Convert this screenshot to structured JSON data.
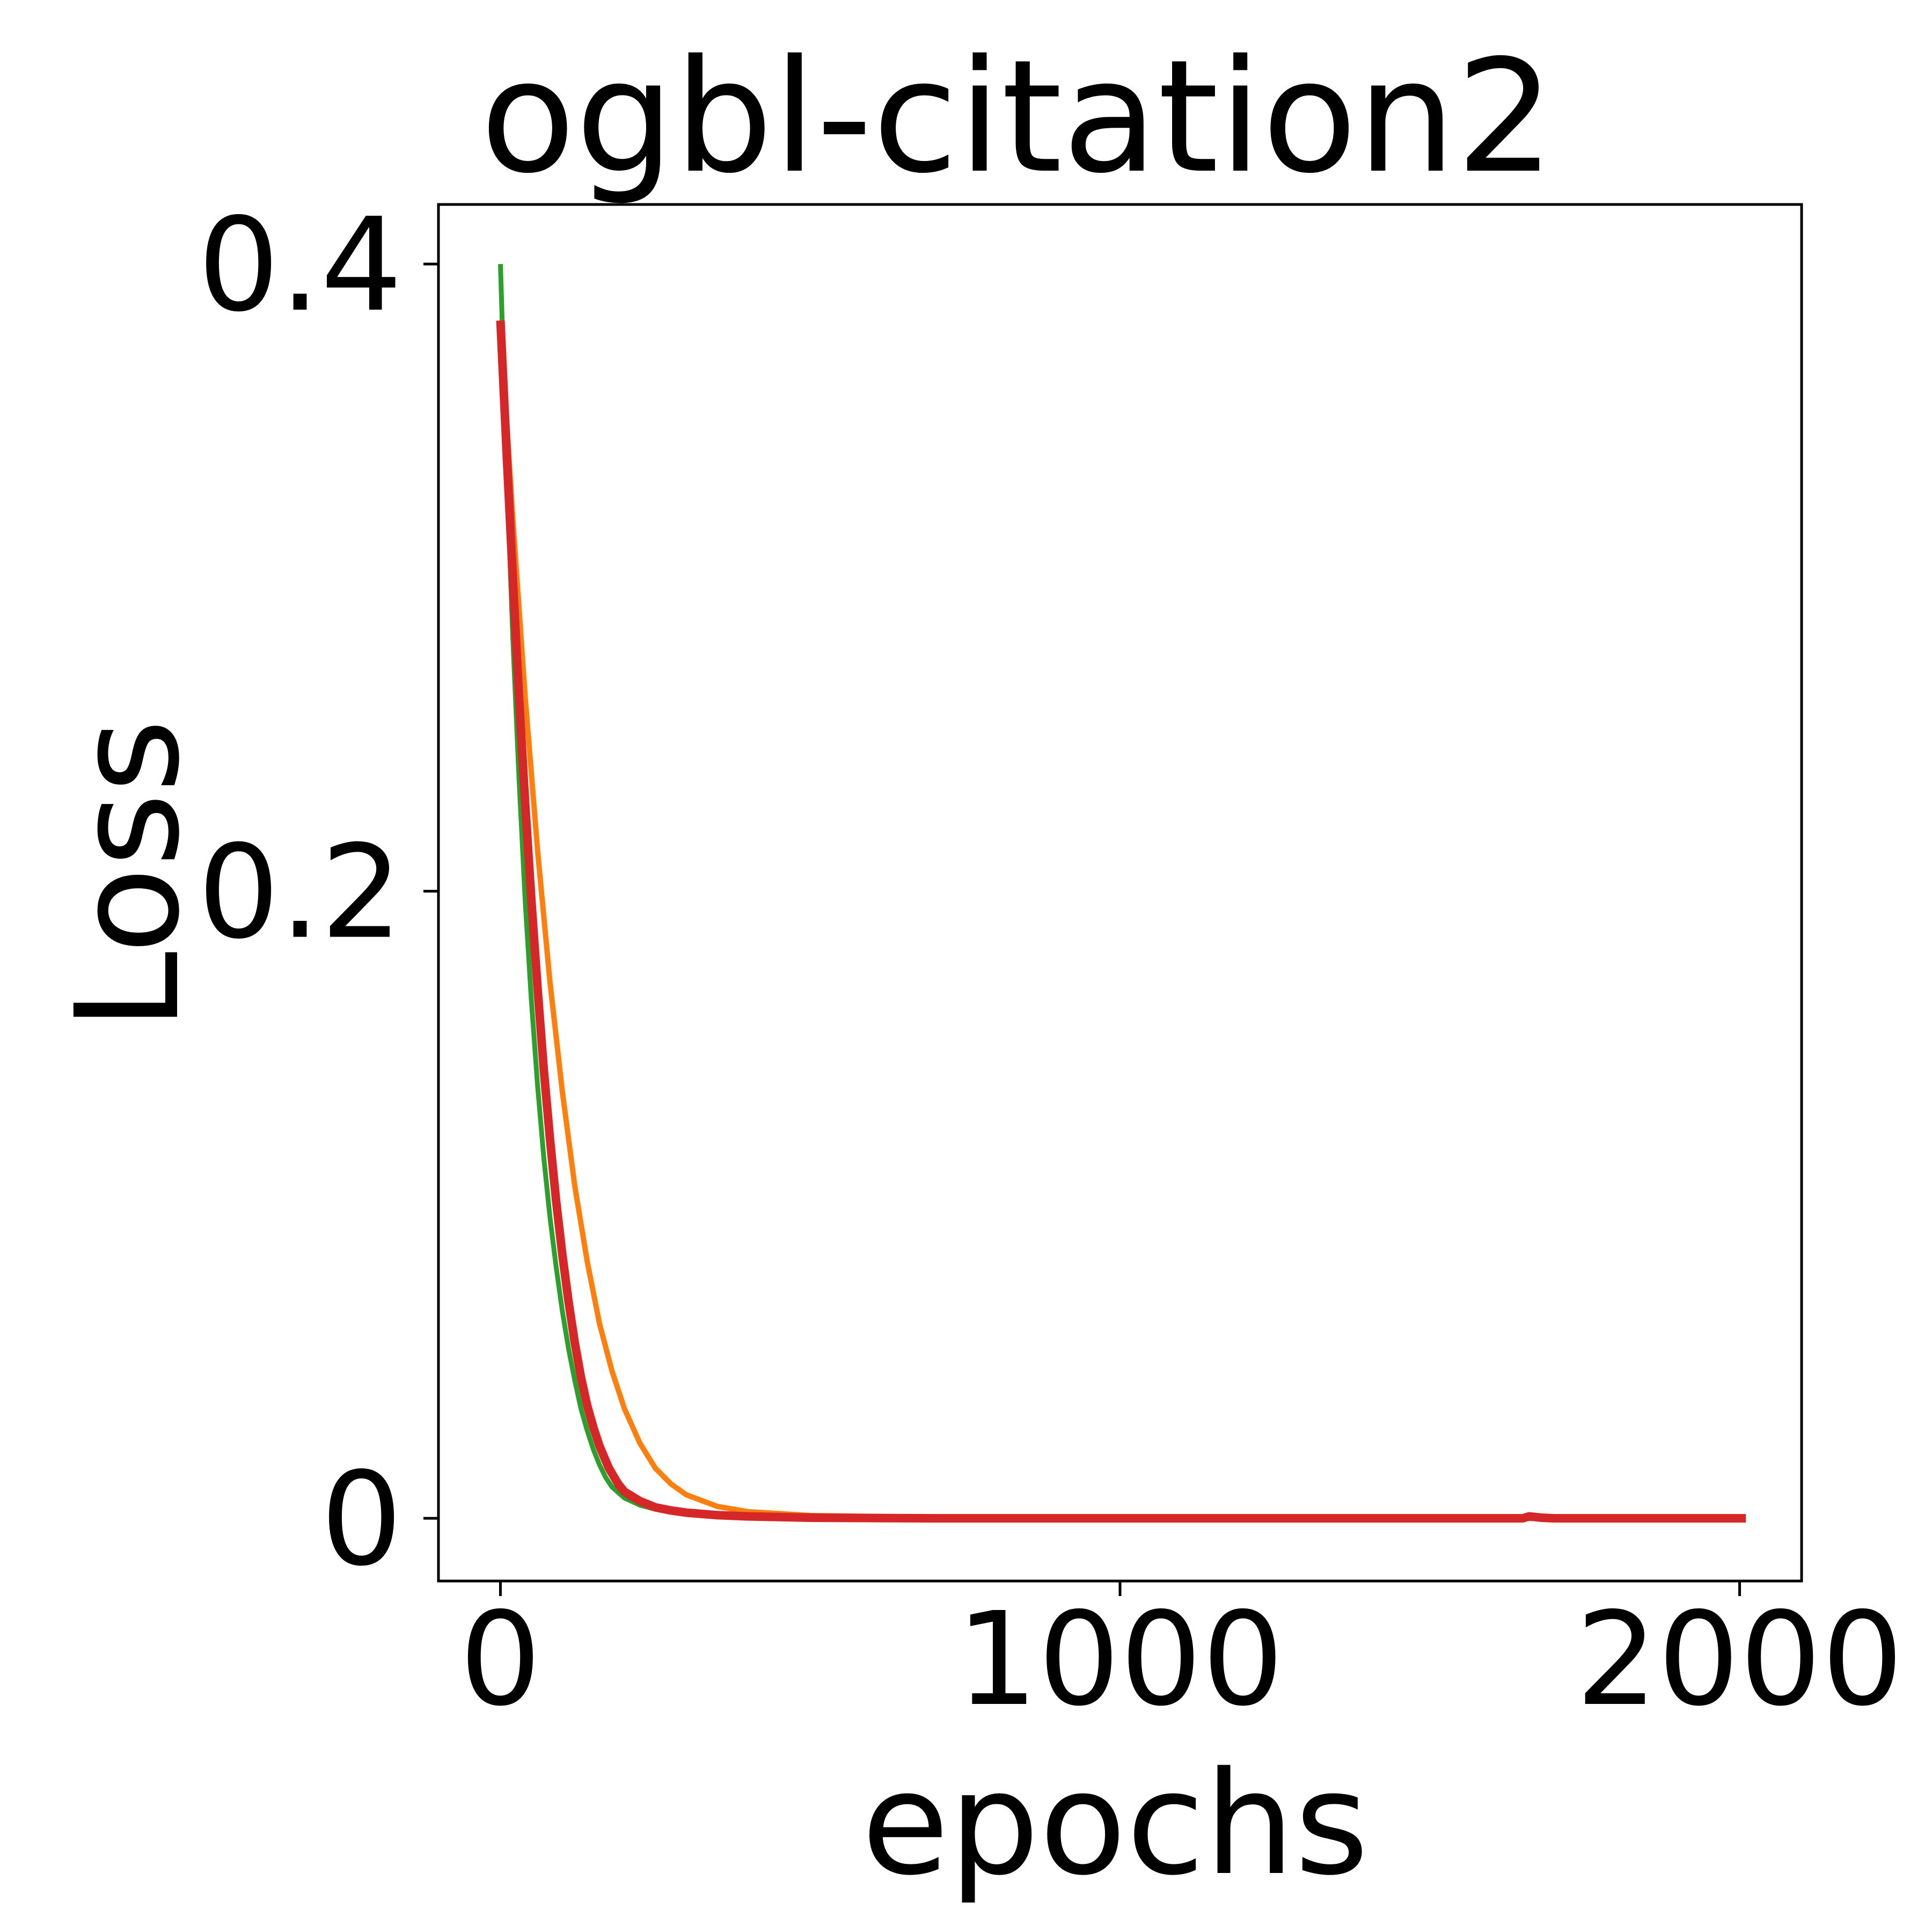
{
  "chart_data": {
    "type": "line",
    "title": "ogbl-citation2",
    "xlabel": "epochs",
    "ylabel": "Loss",
    "xlim": [
      -100,
      2100
    ],
    "ylim": [
      -0.02,
      0.419
    ],
    "xticks": [
      0,
      1000,
      2000
    ],
    "xtick_labels": [
      "0",
      "1000",
      "2000"
    ],
    "yticks": [
      0,
      0.2,
      0.4
    ],
    "ytick_labels": [
      "0",
      "0.2",
      "0.4"
    ],
    "grid": false,
    "legend": "none",
    "series": [
      {
        "color": "#2ca02c",
        "x": [
          0,
          10,
          20,
          30,
          40,
          50,
          60,
          70,
          80,
          90,
          100,
          110,
          120,
          130,
          140,
          150,
          160,
          170,
          180,
          200,
          225,
          250,
          300,
          350,
          400,
          500,
          700,
          1000,
          1500,
          2000
        ],
        "y": [
          0.4,
          0.335,
          0.281,
          0.236,
          0.197,
          0.165,
          0.138,
          0.115,
          0.096,
          0.08,
          0.066,
          0.054,
          0.044,
          0.035,
          0.028,
          0.022,
          0.017,
          0.013,
          0.01,
          0.0065,
          0.0042,
          0.0029,
          0.0016,
          0.0009,
          0.0005,
          0.0002,
          0.0001,
          0.0,
          0.0,
          0.0
        ]
      },
      {
        "color": "#ff7f0e",
        "x": [
          0,
          20,
          40,
          60,
          80,
          100,
          120,
          140,
          160,
          180,
          200,
          225,
          250,
          275,
          300,
          350,
          400,
          500,
          700,
          1000,
          1500,
          2000
        ],
        "y": [
          0.382,
          0.319,
          0.262,
          0.213,
          0.171,
          0.136,
          0.106,
          0.082,
          0.062,
          0.047,
          0.035,
          0.024,
          0.016,
          0.011,
          0.0075,
          0.0038,
          0.0021,
          0.0009,
          0.0003,
          0.0001,
          0.0,
          0.0
        ]
      },
      {
        "color": "#d62728",
        "x": [
          0,
          10,
          20,
          30,
          40,
          50,
          60,
          70,
          80,
          90,
          100,
          110,
          120,
          130,
          140,
          150,
          160,
          175,
          190,
          200,
          225,
          250,
          275,
          300,
          350,
          400,
          500,
          600,
          700,
          800,
          1000,
          1200,
          1400,
          1600,
          1650,
          1660,
          1680,
          1700,
          1800,
          1900,
          2010
        ],
        "y": [
          0.382,
          0.34,
          0.3,
          0.262,
          0.228,
          0.197,
          0.169,
          0.143,
          0.121,
          0.101,
          0.084,
          0.069,
          0.056,
          0.045,
          0.036,
          0.029,
          0.023,
          0.016,
          0.011,
          0.0085,
          0.0055,
          0.0035,
          0.0025,
          0.0018,
          0.001,
          0.0006,
          0.0002,
          0.0001,
          0.0,
          0.0,
          0.0,
          0.0,
          0.0,
          0.0,
          0.0,
          0.0006,
          0.0002,
          0.0,
          0.0,
          0.0,
          0.0
        ]
      }
    ]
  }
}
